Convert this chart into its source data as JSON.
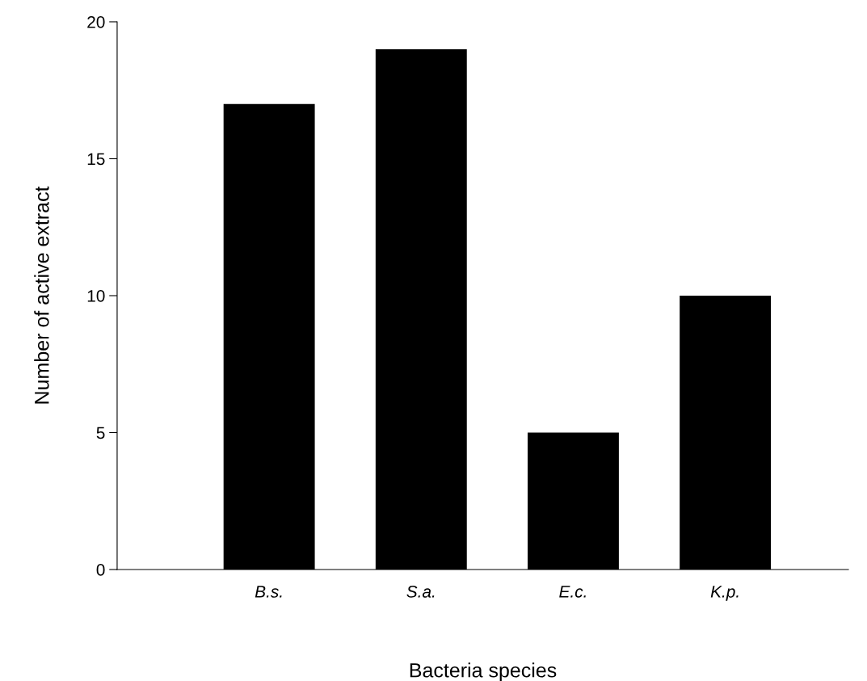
{
  "chart_data": {
    "type": "bar",
    "xlabel": "Bacteria species",
    "ylabel": "Number of active extract",
    "categories": [
      "B.s.",
      "S.a.",
      "E.c.",
      "K.p."
    ],
    "values": [
      17,
      19,
      5,
      10
    ],
    "color": "#000000",
    "ylim": [
      0,
      20
    ],
    "yticks": [
      0,
      5,
      10,
      15,
      20
    ],
    "grid": false,
    "legend": false
  }
}
